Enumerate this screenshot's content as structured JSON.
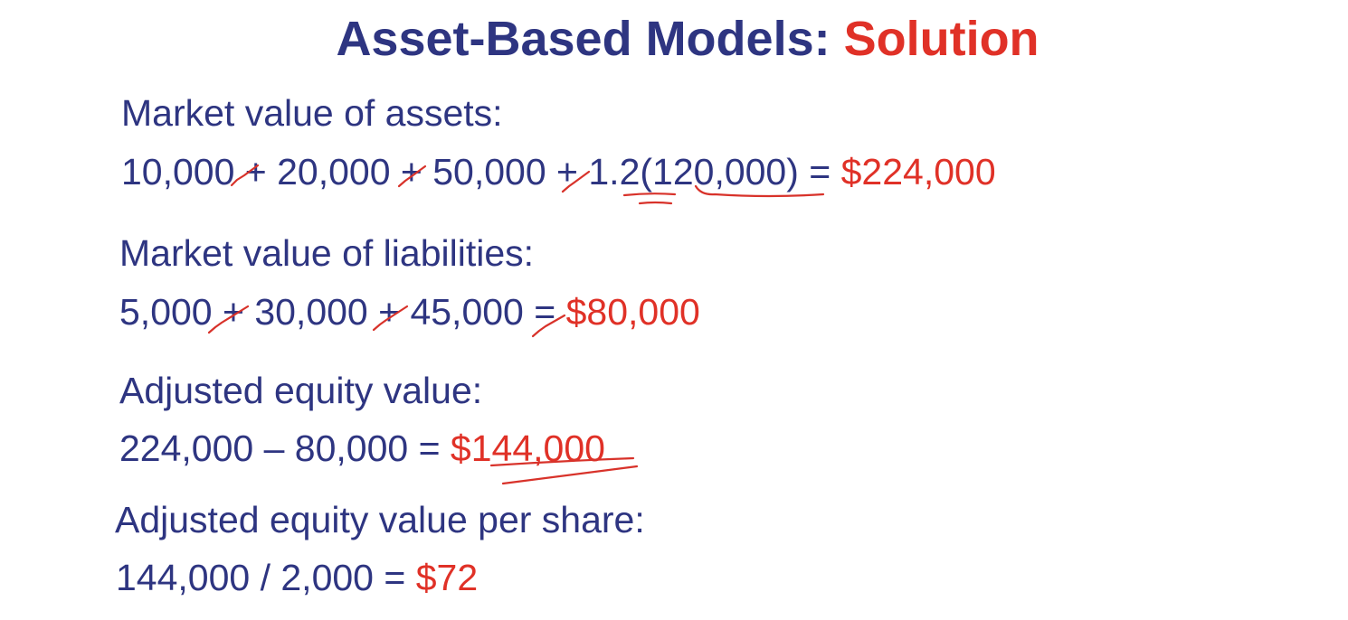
{
  "slide": {
    "title_main": "Asset-Based Models: ",
    "title_accent": "Solution",
    "colors": {
      "text": "#2e3581",
      "accent": "#e03127",
      "ink": "#d8322a"
    }
  },
  "sections": {
    "assets": {
      "heading": "Market value of assets:",
      "expression": "10,000 + 20,000 + 50,000 + 1.2(120,000) = ",
      "result": "$224,000"
    },
    "liabilities": {
      "heading": "Market value of liabilities:",
      "expression": "5,000 + 30,000 + 45,000 = ",
      "result": "$80,000"
    },
    "equity": {
      "heading": "Adjusted equity value:",
      "expression": "224,000 – 80,000 = ",
      "result": "$144,000"
    },
    "per_share": {
      "heading": "Adjusted equity value per share:",
      "expression": "144,000 / 2,000 = ",
      "result": "$72"
    }
  },
  "annotations": {
    "style": "handwritten red check marks and underlines"
  }
}
